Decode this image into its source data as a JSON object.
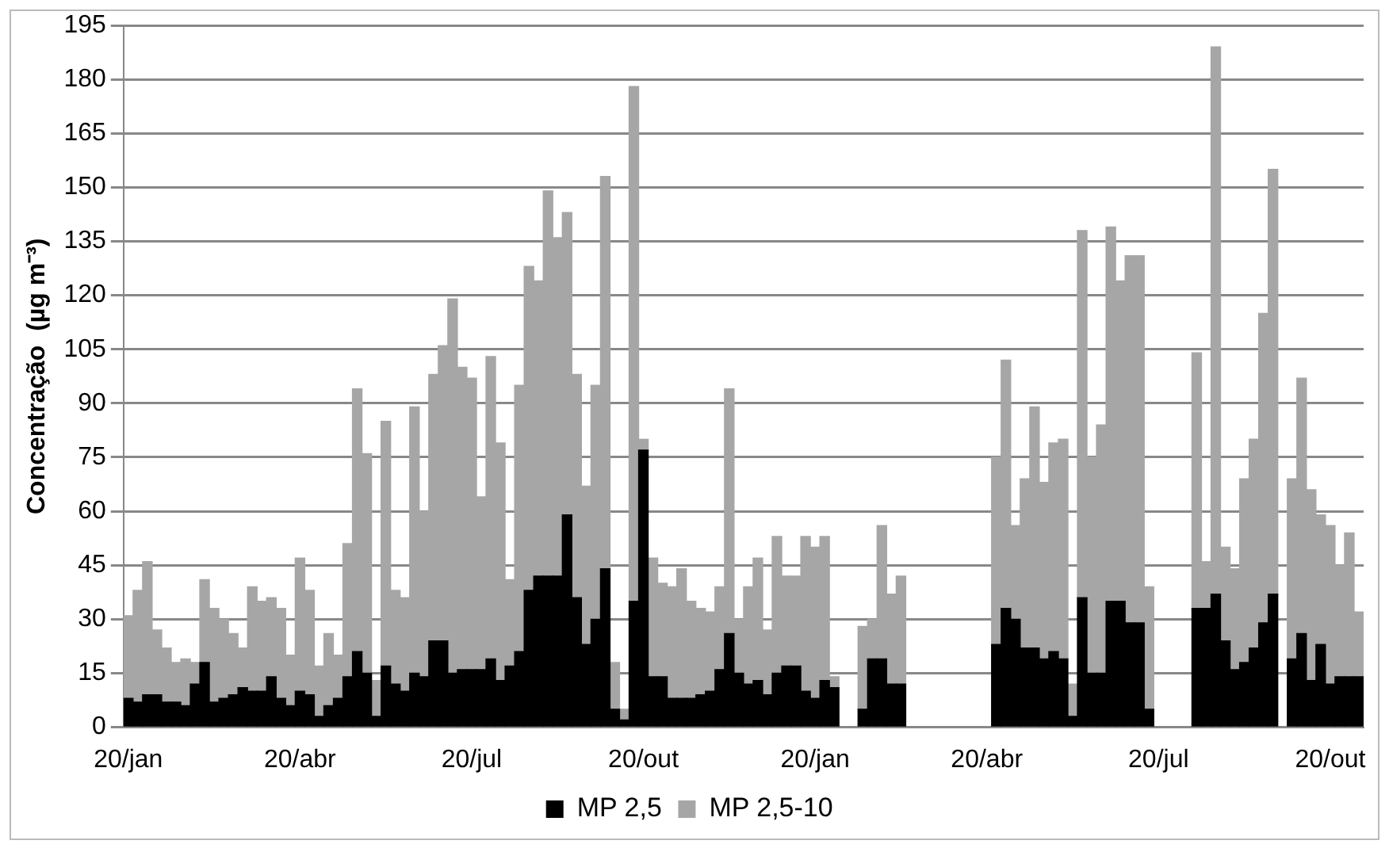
{
  "chart_data": {
    "type": "bar",
    "stacked": true,
    "ylabel": "Concentração  (µg m⁻³)",
    "categories": [
      "20/jan",
      null,
      null,
      null,
      null,
      null,
      null,
      null,
      null,
      null,
      null,
      null,
      null,
      null,
      null,
      null,
      null,
      null,
      "20/abr",
      null,
      null,
      null,
      null,
      null,
      null,
      null,
      null,
      null,
      null,
      null,
      null,
      null,
      null,
      null,
      null,
      null,
      "20/jul",
      null,
      null,
      null,
      null,
      null,
      null,
      null,
      null,
      null,
      null,
      null,
      null,
      null,
      null,
      null,
      null,
      null,
      "20/out",
      null,
      null,
      null,
      null,
      null,
      null,
      null,
      null,
      null,
      null,
      null,
      null,
      null,
      null,
      null,
      null,
      null,
      "20/jan",
      null,
      null,
      null,
      null,
      null,
      null,
      null,
      null,
      null,
      null,
      null,
      null,
      null,
      null,
      null,
      null,
      null,
      "20/abr",
      null,
      null,
      null,
      null,
      null,
      null,
      null,
      null,
      null,
      null,
      null,
      null,
      null,
      null,
      null,
      null,
      null,
      "20/jul",
      null,
      null,
      null,
      null,
      null,
      null,
      null,
      null,
      null,
      null,
      null,
      null,
      null,
      null,
      null,
      null,
      null,
      "20/out",
      null,
      null,
      null
    ],
    "series": [
      {
        "name": "MP 2,5",
        "color": "#000000",
        "values": [
          8,
          7,
          9,
          9,
          7,
          7,
          6,
          12,
          18,
          7,
          8,
          9,
          11,
          10,
          10,
          14,
          8,
          6,
          10,
          9,
          3,
          6,
          8,
          14,
          21,
          15,
          3,
          17,
          12,
          10,
          15,
          14,
          24,
          24,
          15,
          16,
          16,
          16,
          19,
          13,
          17,
          21,
          38,
          42,
          42,
          42,
          59,
          36,
          23,
          30,
          44,
          5,
          2,
          35,
          77,
          14,
          14,
          8,
          8,
          8,
          9,
          10,
          16,
          26,
          15,
          12,
          13,
          9,
          15,
          17,
          17,
          10,
          8,
          13,
          11,
          null,
          null,
          5,
          19,
          19,
          12,
          12,
          null,
          null,
          null,
          null,
          null,
          null,
          null,
          null,
          null,
          23,
          33,
          30,
          22,
          22,
          19,
          21,
          19,
          3,
          36,
          15,
          15,
          35,
          35,
          29,
          29,
          5,
          null,
          null,
          null,
          null,
          33,
          33,
          37,
          24,
          16,
          18,
          22,
          29,
          37,
          null,
          19,
          26,
          13,
          23,
          12,
          14,
          14,
          14
        ]
      },
      {
        "name": "MP 2,5-10",
        "color": "#a6a6a6",
        "values": [
          23,
          31,
          37,
          18,
          15,
          11,
          13,
          6,
          23,
          26,
          22,
          17,
          11,
          29,
          25,
          22,
          25,
          14,
          37,
          29,
          14,
          20,
          12,
          37,
          73,
          61,
          10,
          68,
          26,
          26,
          74,
          46,
          74,
          82,
          104,
          84,
          81,
          48,
          84,
          66,
          24,
          74,
          90,
          82,
          107,
          94,
          84,
          62,
          44,
          65,
          109,
          13,
          3,
          143,
          3,
          33,
          26,
          31,
          36,
          27,
          24,
          22,
          23,
          68,
          15,
          27,
          34,
          18,
          38,
          25,
          25,
          43,
          42,
          40,
          3,
          null,
          null,
          23,
          11,
          37,
          25,
          30,
          null,
          null,
          null,
          null,
          null,
          null,
          null,
          null,
          null,
          52,
          69,
          26,
          47,
          67,
          49,
          58,
          61,
          9,
          102,
          60,
          69,
          104,
          89,
          102,
          102,
          34,
          null,
          null,
          null,
          null,
          71,
          13,
          152,
          26,
          28,
          51,
          58,
          86,
          118,
          null,
          50,
          71,
          53,
          36,
          44,
          31,
          40,
          18
        ]
      }
    ],
    "ylim": [
      0,
      195
    ],
    "yticks": [
      0,
      15,
      30,
      45,
      60,
      75,
      90,
      105,
      120,
      135,
      150,
      165,
      180,
      195
    ],
    "grid": "y",
    "legend": "bottom"
  }
}
